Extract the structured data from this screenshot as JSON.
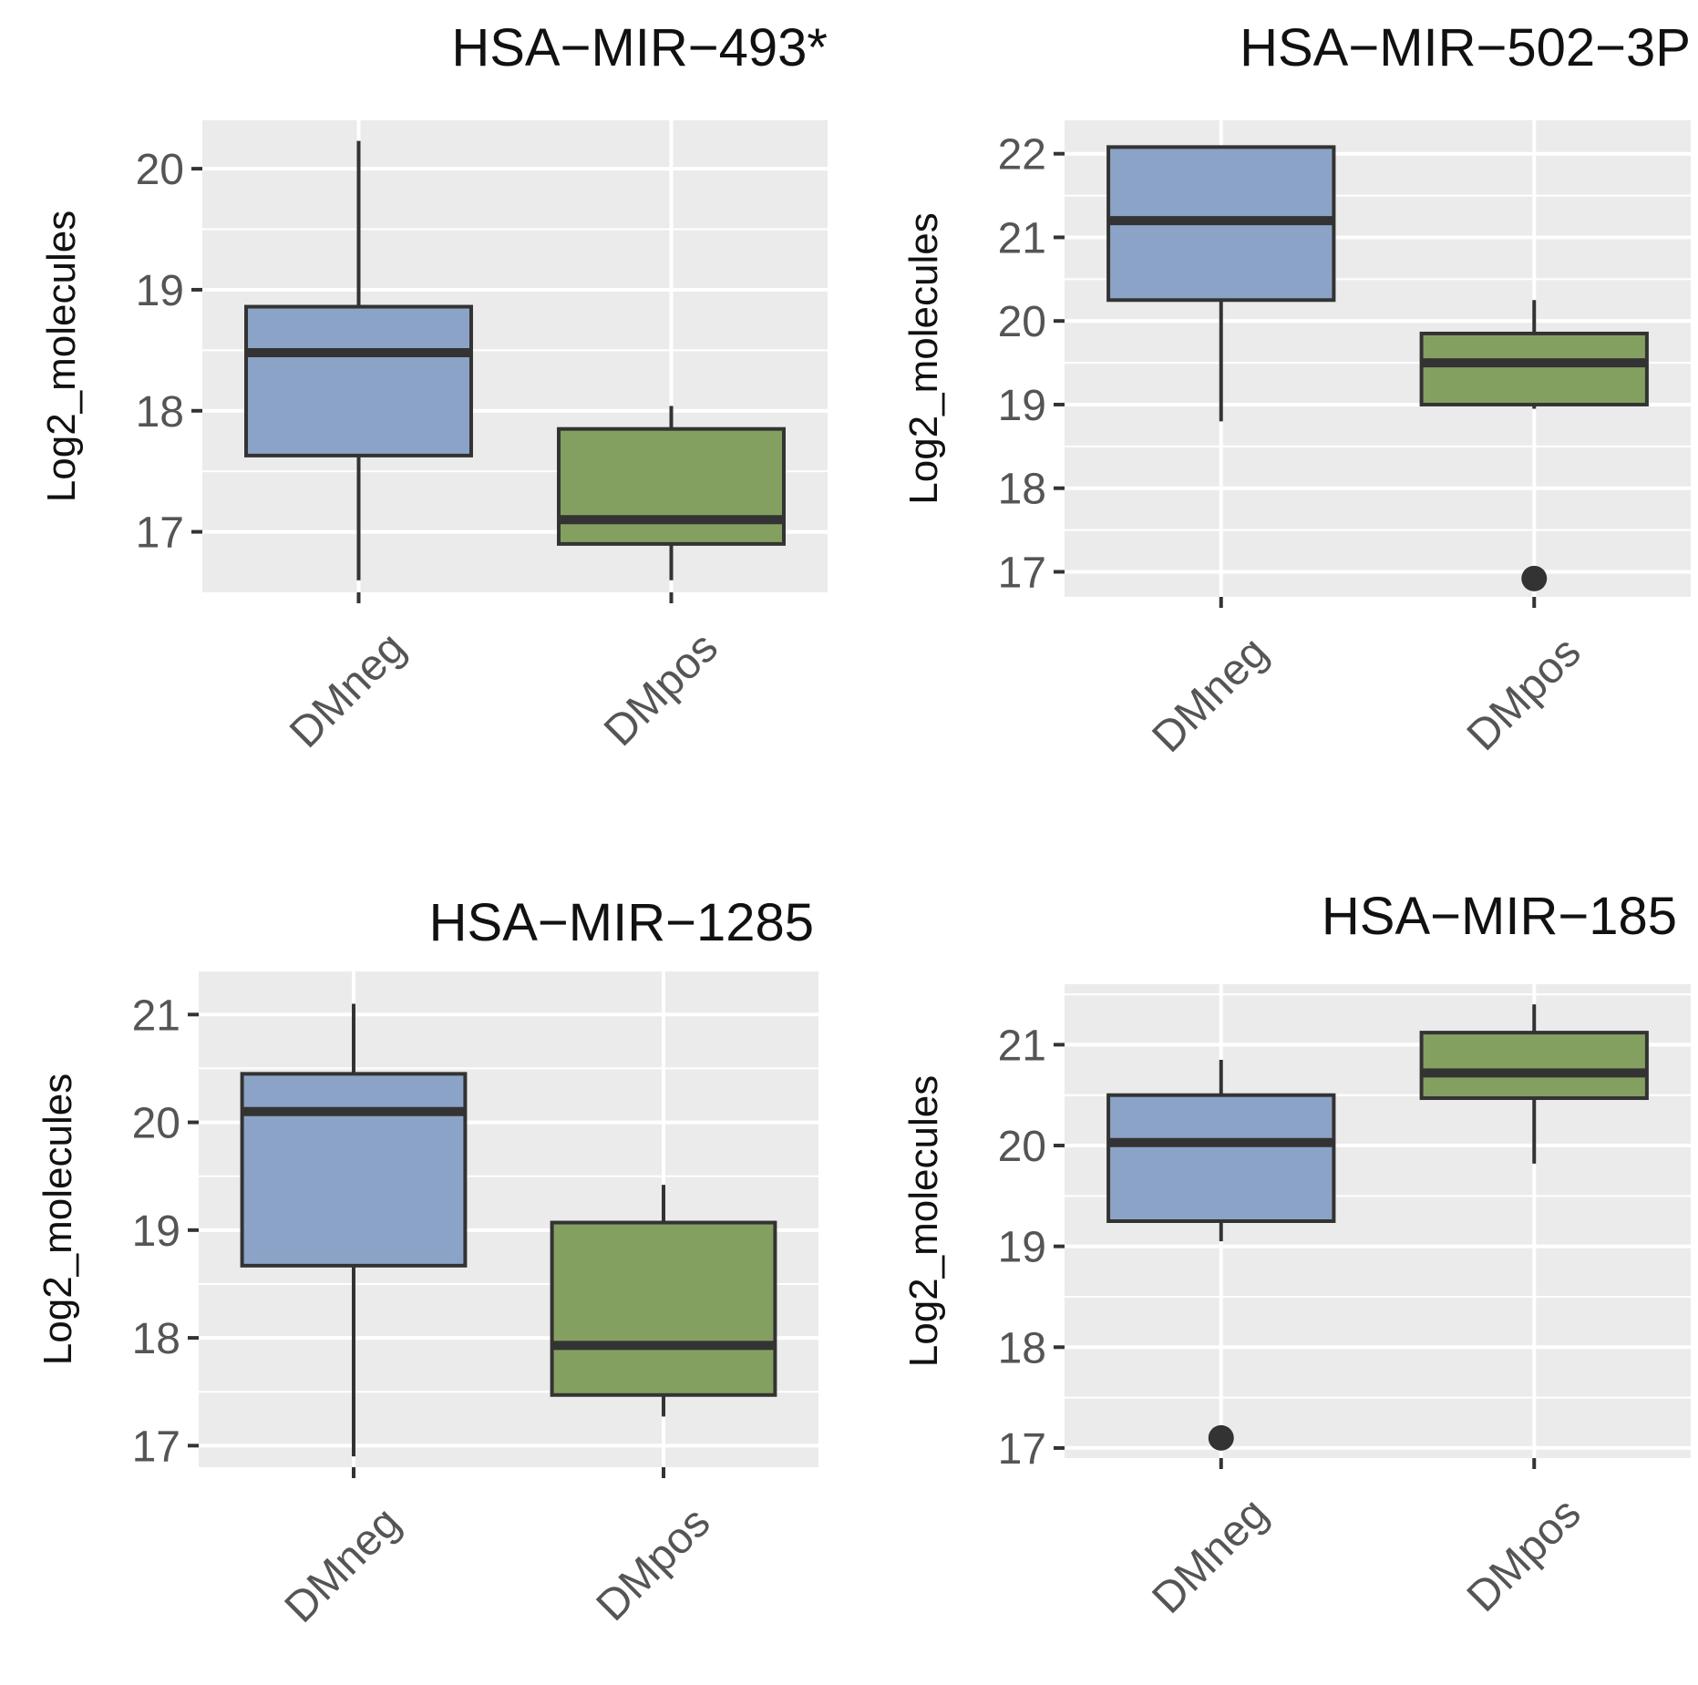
{
  "chart_data": [
    {
      "type": "box",
      "title": "HSA−MIR−493*",
      "xlabel": "",
      "ylabel": "Log2_molecules",
      "ylim": [
        16.5,
        20.4
      ],
      "yticks": [
        "17",
        "18",
        "19",
        "20"
      ],
      "categories": [
        "DMneg",
        "DMpos"
      ],
      "boxes": [
        {
          "category": "DMneg",
          "fill": "#8ba3c6",
          "whisker_low": 16.6,
          "q1": 17.63,
          "median": 18.48,
          "q3": 18.86,
          "whisker_high": 20.23,
          "outliers": []
        },
        {
          "category": "DMpos",
          "fill": "#84a061",
          "whisker_low": 16.6,
          "q1": 16.9,
          "median": 17.1,
          "q3": 17.85,
          "whisker_high": 18.04,
          "outliers": []
        }
      ]
    },
    {
      "type": "box",
      "title": "HSA−MIR−502−3P",
      "xlabel": "",
      "ylabel": "Log2_molecules",
      "ylim": [
        16.7,
        22.4
      ],
      "yticks": [
        "17",
        "18",
        "19",
        "20",
        "21",
        "22"
      ],
      "categories": [
        "DMneg",
        "DMpos"
      ],
      "boxes": [
        {
          "category": "DMneg",
          "fill": "#8ba3c6",
          "whisker_low": 18.8,
          "q1": 20.25,
          "median": 21.2,
          "q3": 22.08,
          "whisker_high": 22.1,
          "outliers": []
        },
        {
          "category": "DMpos",
          "fill": "#84a061",
          "whisker_low": 18.95,
          "q1": 19.0,
          "median": 19.5,
          "q3": 19.85,
          "whisker_high": 20.25,
          "outliers": [
            16.92
          ]
        }
      ]
    },
    {
      "type": "box",
      "title": "HSA−MIR−1285",
      "xlabel": "",
      "ylabel": "Log2_molecules",
      "ylim": [
        16.8,
        21.4
      ],
      "yticks": [
        "17",
        "18",
        "19",
        "20",
        "21"
      ],
      "categories": [
        "DMneg",
        "DMpos"
      ],
      "boxes": [
        {
          "category": "DMneg",
          "fill": "#8ba3c6",
          "whisker_low": 16.9,
          "q1": 18.67,
          "median": 20.1,
          "q3": 20.45,
          "whisker_high": 21.1,
          "outliers": []
        },
        {
          "category": "DMpos",
          "fill": "#84a061",
          "whisker_low": 17.27,
          "q1": 17.47,
          "median": 17.93,
          "q3": 19.07,
          "whisker_high": 19.42,
          "outliers": []
        }
      ]
    },
    {
      "type": "box",
      "title": "HSA−MIR−185",
      "xlabel": "",
      "ylabel": "Log2_molecules",
      "ylim": [
        16.9,
        21.6
      ],
      "yticks": [
        "17",
        "18",
        "19",
        "20",
        "21"
      ],
      "categories": [
        "DMneg",
        "DMpos"
      ],
      "boxes": [
        {
          "category": "DMneg",
          "fill": "#8ba3c6",
          "whisker_low": 19.05,
          "q1": 19.25,
          "median": 20.03,
          "q3": 20.5,
          "whisker_high": 20.85,
          "outliers": [
            17.1
          ]
        },
        {
          "category": "DMpos",
          "fill": "#84a061",
          "whisker_low": 19.82,
          "q1": 20.47,
          "median": 20.72,
          "q3": 21.12,
          "whisker_high": 21.4,
          "outliers": []
        }
      ]
    }
  ],
  "colors": {
    "panel_background": "#ebebeb",
    "grid": "#ffffff",
    "outline": "#333333",
    "DMneg": "#8ba3c6",
    "DMpos": "#84a061"
  }
}
